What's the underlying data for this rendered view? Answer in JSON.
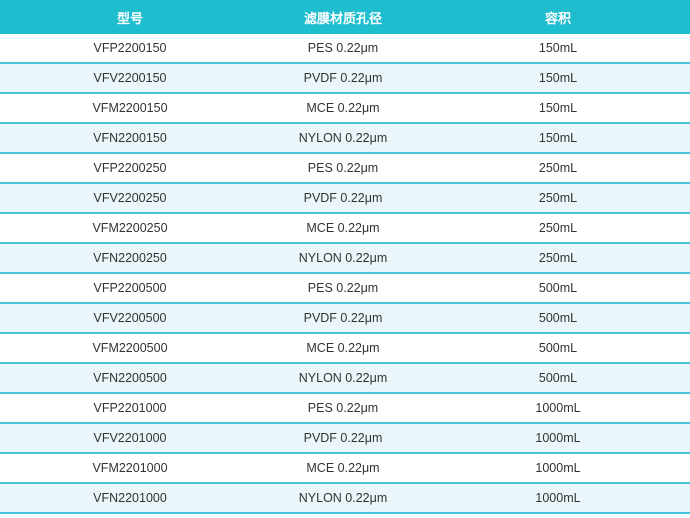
{
  "header": {
    "model": "型号",
    "membrane": "滤膜材质孔径",
    "volume": "容积"
  },
  "rows": [
    {
      "model": "VFP2200150",
      "membrane": "PES 0.22μm",
      "volume": "150mL"
    },
    {
      "model": "VFV2200150",
      "membrane": "PVDF 0.22μm",
      "volume": "150mL"
    },
    {
      "model": "VFM2200150",
      "membrane": "MCE 0.22μm",
      "volume": "150mL"
    },
    {
      "model": "VFN2200150",
      "membrane": "NYLON 0.22μm",
      "volume": "150mL"
    },
    {
      "model": "VFP2200250",
      "membrane": "PES 0.22μm",
      "volume": "250mL"
    },
    {
      "model": "VFV2200250",
      "membrane": "PVDF 0.22μm",
      "volume": "250mL"
    },
    {
      "model": "VFM2200250",
      "membrane": "MCE 0.22μm",
      "volume": "250mL"
    },
    {
      "model": "VFN2200250",
      "membrane": "NYLON 0.22μm",
      "volume": "250mL"
    },
    {
      "model": "VFP2200500",
      "membrane": "PES 0.22μm",
      "volume": "500mL"
    },
    {
      "model": "VFV2200500",
      "membrane": "PVDF 0.22μm",
      "volume": "500mL"
    },
    {
      "model": "VFM2200500",
      "membrane": "MCE 0.22μm",
      "volume": "500mL"
    },
    {
      "model": "VFN2200500",
      "membrane": "NYLON 0.22μm",
      "volume": "500mL"
    },
    {
      "model": "VFP2201000",
      "membrane": "PES 0.22μm",
      "volume": "1000mL"
    },
    {
      "model": "VFV2201000",
      "membrane": "PVDF 0.22μm",
      "volume": "1000mL"
    },
    {
      "model": "VFM2201000",
      "membrane": "MCE 0.22μm",
      "volume": "1000mL"
    },
    {
      "model": "VFN2201000",
      "membrane": "NYLON 0.22μm",
      "volume": "1000mL"
    }
  ],
  "colors": {
    "header_bg": "#1fbecf",
    "row_alt": "#ebf6fa",
    "divider": "#46c6d8"
  }
}
